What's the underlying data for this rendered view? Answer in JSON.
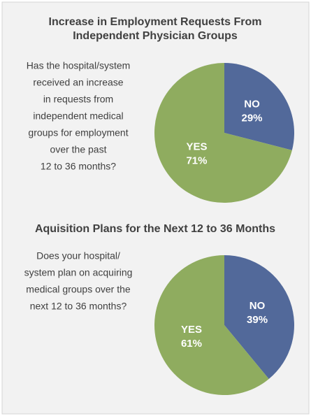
{
  "chart_data": [
    {
      "type": "pie",
      "title": [
        "Increase in Employment Requests From",
        "Independent Physician Groups"
      ],
      "annotation": [
        "Has the hospital/system",
        "received an increase",
        "in requests from",
        "independent medical",
        "groups for employment",
        "over the past",
        "12 to 36 months?"
      ],
      "categories": [
        "NO",
        "YES"
      ],
      "values": [
        29,
        71
      ],
      "value_labels": [
        "29%",
        "71%"
      ],
      "colors": [
        "#52699a",
        "#8fac5f"
      ]
    },
    {
      "type": "pie",
      "title": [
        "Aquisition Plans for the Next 12 to 36 Months"
      ],
      "annotation": [
        "Does your hospital/",
        "system plan on acquiring",
        "medical groups over the",
        "next 12 to 36 months?"
      ],
      "categories": [
        "NO",
        "YES"
      ],
      "values": [
        39,
        61
      ],
      "value_labels": [
        "39%",
        "61%"
      ],
      "colors": [
        "#52699a",
        "#8fac5f"
      ]
    }
  ]
}
